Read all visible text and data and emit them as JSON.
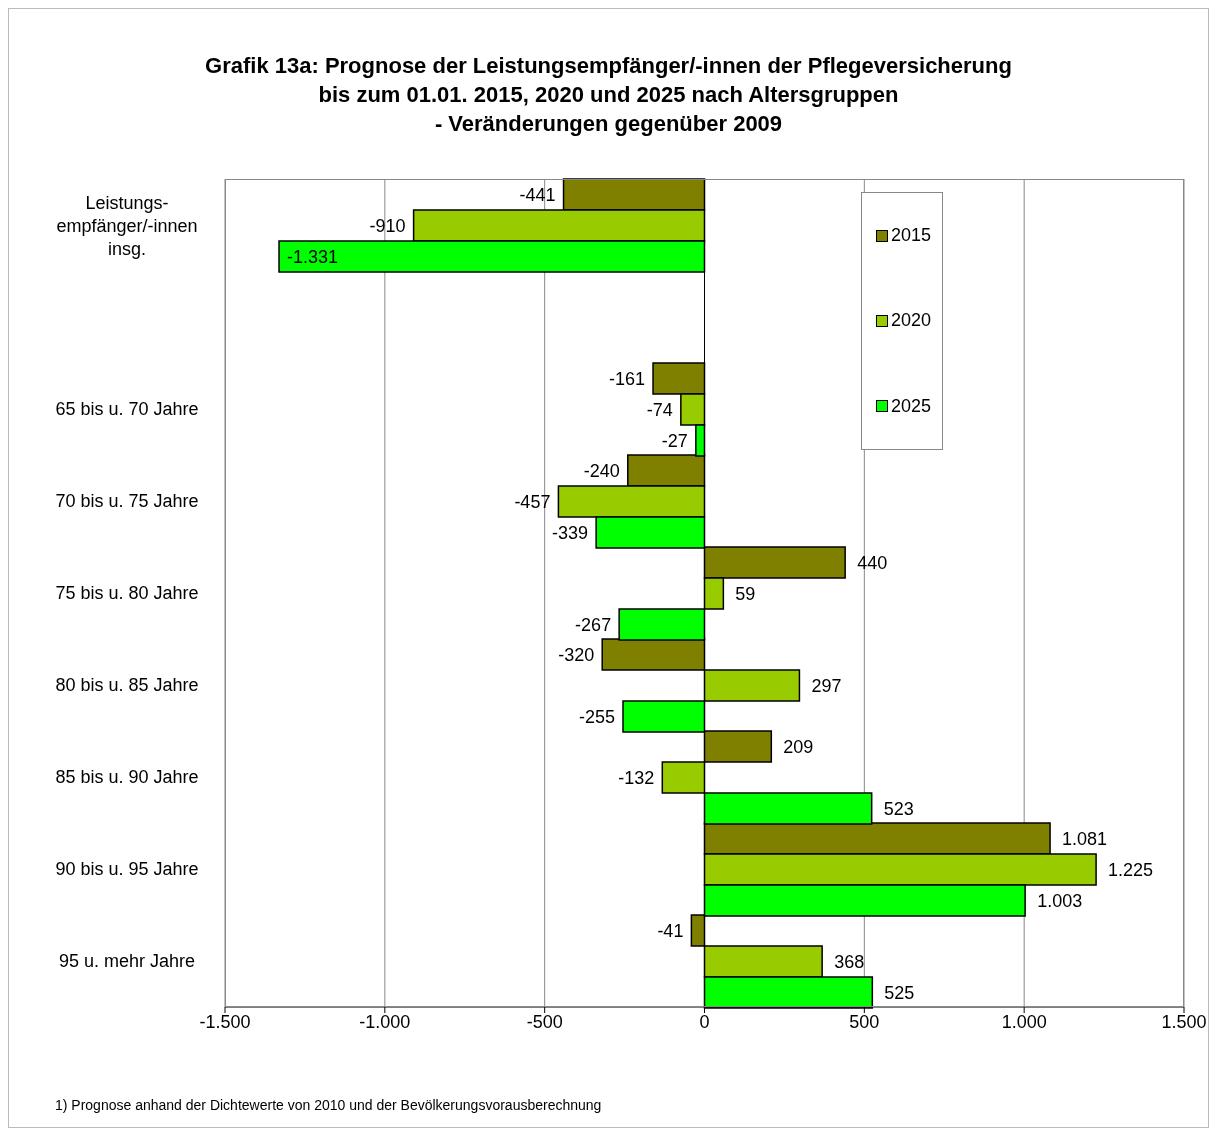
{
  "chart_data": {
    "type": "bar",
    "orientation": "horizontal",
    "title": "Grafik 13a: Prognose der Leistungsempfänger/-innen der Pflegeversicherung\nbis zum 01.01. 2015, 2020 und 2025 nach Altersgruppen\n- Veränderungen gegenüber 2009",
    "categories": [
      "Leistungs-\nempfänger/-innen\ninsg.",
      null,
      "65 bis u. 70 Jahre",
      "70 bis u. 75 Jahre",
      "75 bis u. 80 Jahre",
      "80 bis u. 85 Jahre",
      "85 bis u. 90 Jahre",
      "90 bis u. 95 Jahre",
      "95 u. mehr Jahre"
    ],
    "series": [
      {
        "name": "2015",
        "color": "#808000",
        "values": [
          -441,
          null,
          -161,
          -240,
          440,
          -320,
          209,
          1081,
          -41
        ],
        "value_labels": [
          "-441",
          null,
          "-161",
          "-240",
          "440",
          "-320",
          "209",
          "1.081",
          "-41"
        ]
      },
      {
        "name": "2020",
        "color": "#99cc00",
        "values": [
          -910,
          null,
          -74,
          -457,
          59,
          297,
          -132,
          1225,
          368
        ],
        "value_labels": [
          "-910",
          null,
          "-74",
          "-457",
          "59",
          "297",
          "-132",
          "1.225",
          "368"
        ]
      },
      {
        "name": "2025",
        "color": "#00ff00",
        "values": [
          -1331,
          null,
          -27,
          -339,
          -267,
          -255,
          523,
          1003,
          525
        ],
        "value_labels": [
          "-1.331",
          null,
          "-27",
          "-339",
          "-267",
          "-255",
          "523",
          "1.003",
          "525"
        ]
      }
    ],
    "xlim": [
      -1500,
      1500
    ],
    "xticks": [
      {
        "value": -1500,
        "label": "-1.500"
      },
      {
        "value": -1000,
        "label": "-1.000"
      },
      -500,
      0,
      500,
      {
        "value": 1000,
        "label": "1.000"
      },
      {
        "value": 1500,
        "label": "1.500"
      }
    ],
    "grid": "x",
    "legend": "right",
    "annotations": [
      "1) Prognose anhand der Dichtewerte von 2010 und der Bevölkerungsvorausberechnung"
    ]
  }
}
